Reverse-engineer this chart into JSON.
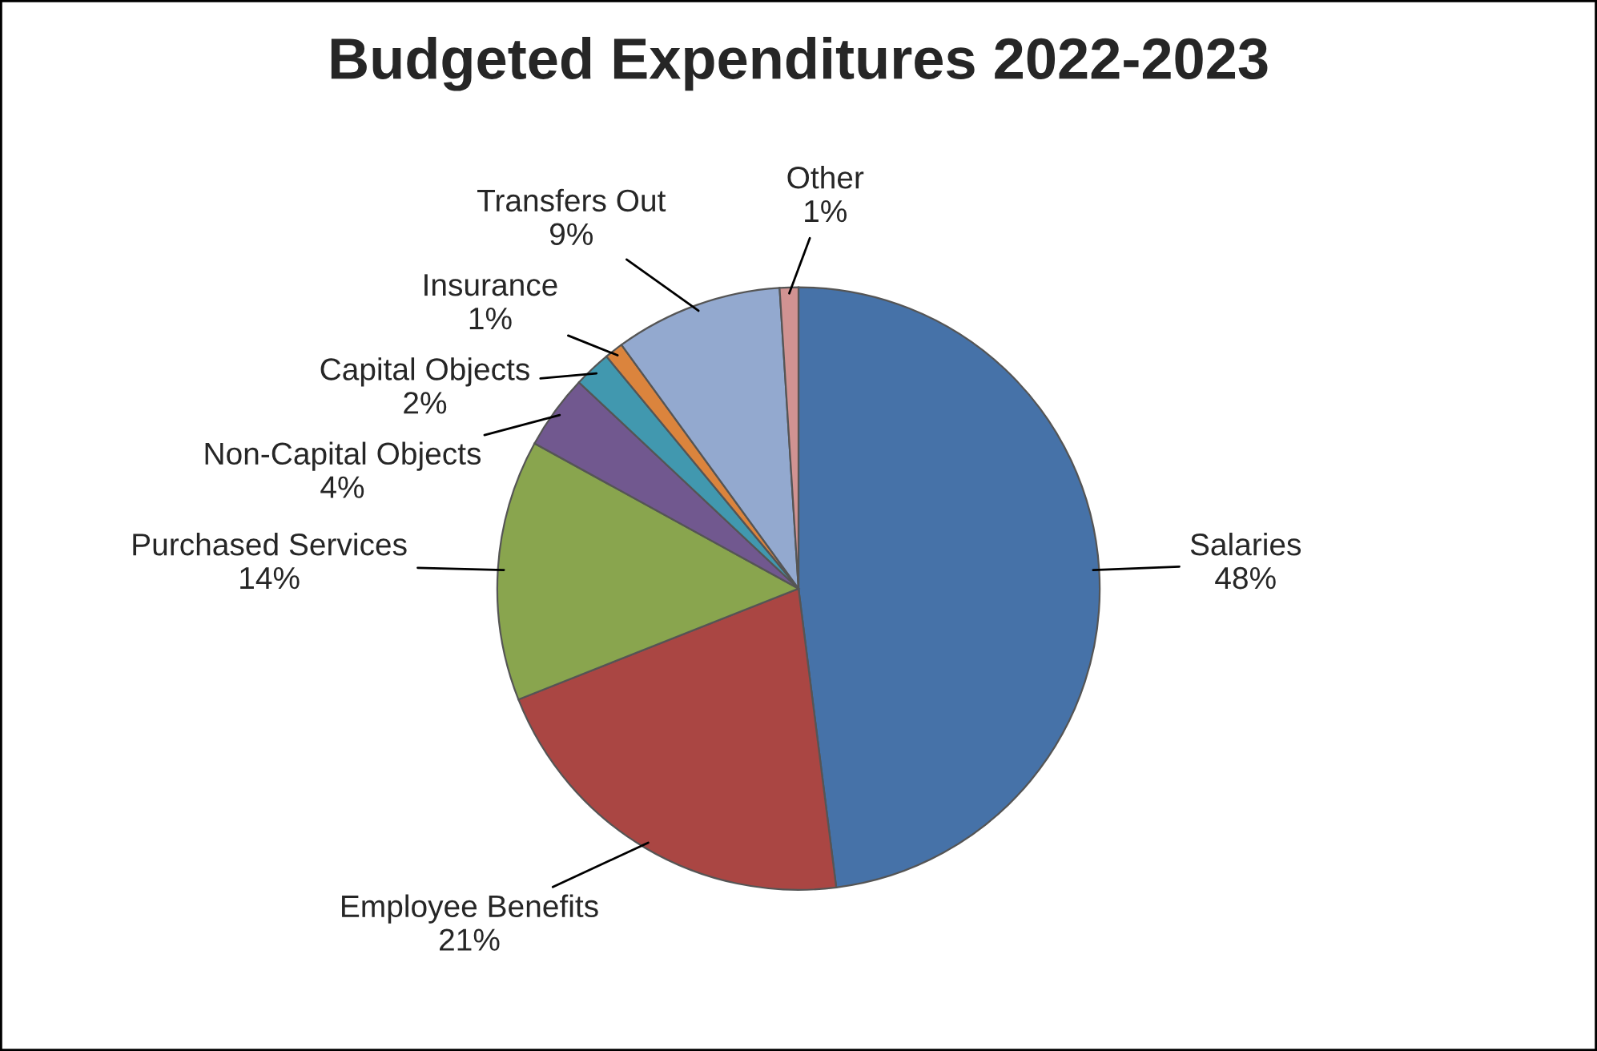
{
  "chart_data": {
    "type": "pie",
    "title": "Budgeted Expenditures 2022-2023",
    "categories": [
      "Salaries",
      "Employee Benefits",
      "Purchased Services",
      "Non-Capital Objects",
      "Capital Objects",
      "Insurance",
      "Transfers Out",
      "Other"
    ],
    "values": [
      48,
      21,
      14,
      4,
      2,
      1,
      9,
      1
    ],
    "colors": [
      "#4672a8",
      "#aa4643",
      "#89a54e",
      "#71588f",
      "#4198af",
      "#db843d",
      "#93a9cf",
      "#d19392"
    ],
    "value_labels": [
      "48%",
      "21%",
      "14%",
      "4%",
      "2%",
      "1%",
      "9%",
      "1%"
    ]
  }
}
